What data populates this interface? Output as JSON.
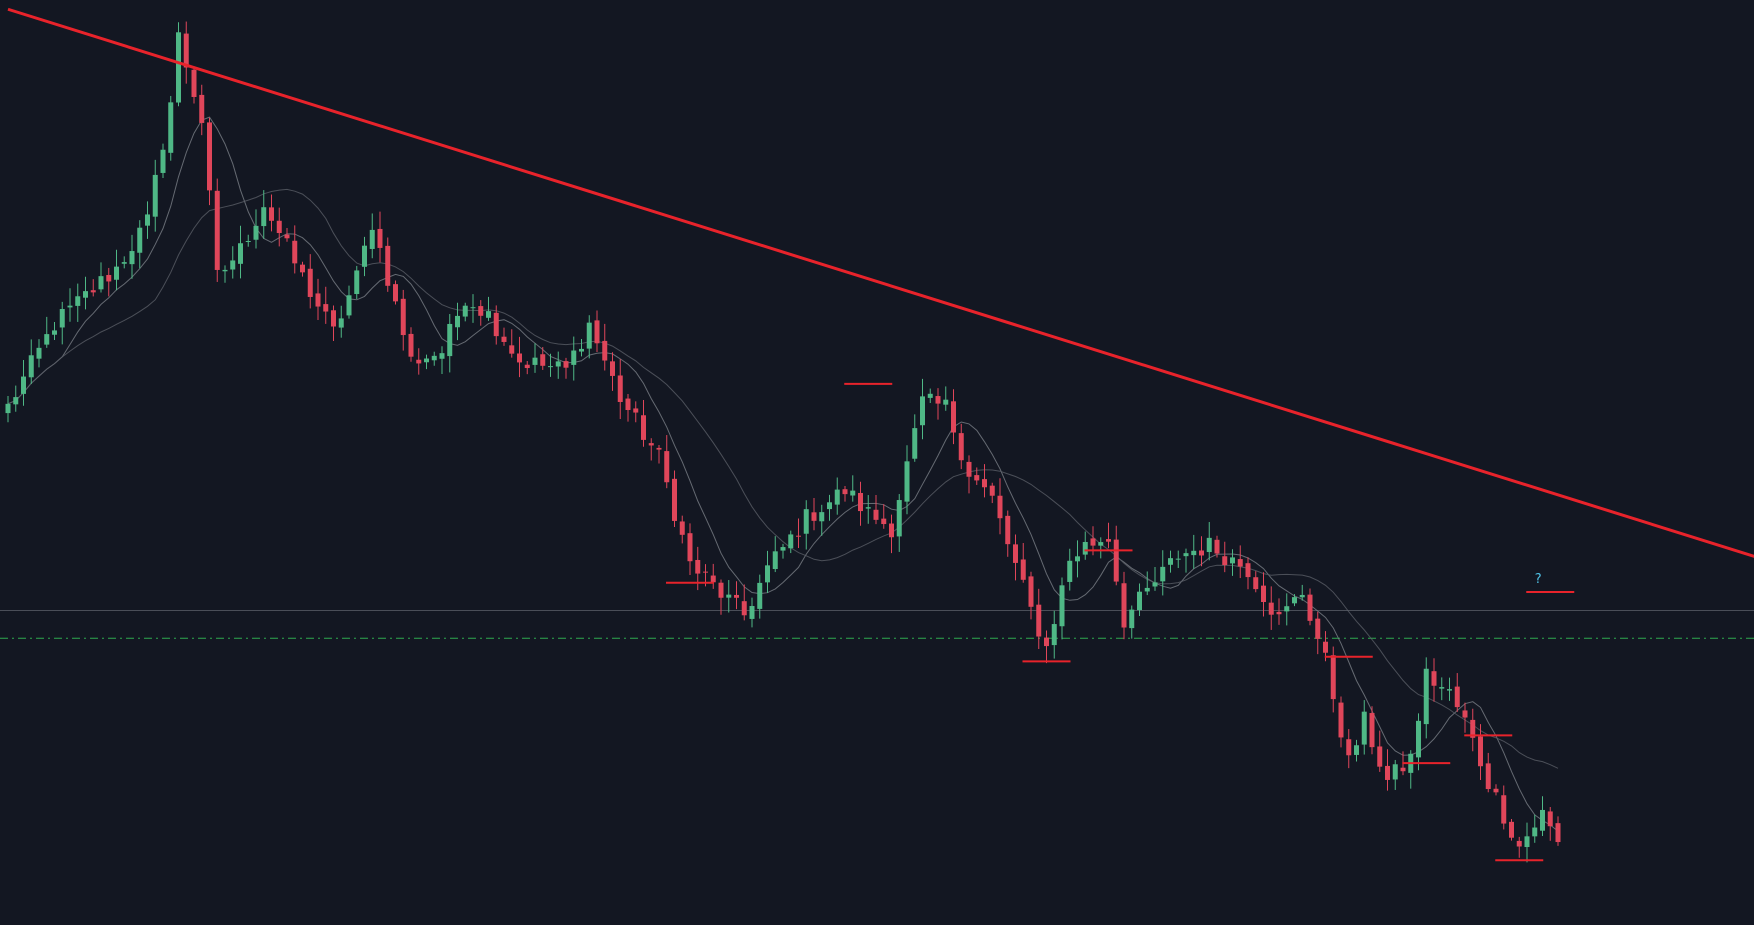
{
  "chart_data": {
    "type": "candlestick",
    "title": "",
    "xlabel": "",
    "ylabel": "",
    "grid": false,
    "ylim": [
      0,
      1000
    ],
    "colors": {
      "background": "#131722",
      "up": "#4fb886",
      "down": "#e0465a",
      "trendline": "#e8232b",
      "level_marker": "#e8232b",
      "moving_average_fast": "#7b7f87",
      "moving_average_slow": "#5a5e66",
      "horizontal_line": "#4a4e58",
      "dashed_line": "#2eaa4f",
      "question_mark": "#4fc3e8"
    },
    "anchors": [
      [
        0,
        560
      ],
      [
        6,
        650
      ],
      [
        14,
        710
      ],
      [
        18,
        760
      ],
      [
        21,
        890
      ],
      [
        22,
        960
      ],
      [
        25,
        870
      ],
      [
        27,
        700
      ],
      [
        30,
        730
      ],
      [
        33,
        780
      ],
      [
        38,
        700
      ],
      [
        42,
        640
      ],
      [
        45,
        700
      ],
      [
        47,
        760
      ],
      [
        52,
        610
      ],
      [
        56,
        620
      ],
      [
        59,
        680
      ],
      [
        62,
        660
      ],
      [
        66,
        610
      ],
      [
        72,
        600
      ],
      [
        75,
        650
      ],
      [
        79,
        570
      ],
      [
        84,
        505
      ],
      [
        88,
        390
      ],
      [
        95,
        335
      ],
      [
        98,
        385
      ],
      [
        103,
        440
      ],
      [
        108,
        470
      ],
      [
        111,
        445
      ],
      [
        114,
        430
      ],
      [
        117,
        530
      ],
      [
        118,
        565
      ],
      [
        121,
        560
      ],
      [
        124,
        490
      ],
      [
        127,
        460
      ],
      [
        132,
        340
      ],
      [
        134,
        300
      ],
      [
        137,
        395
      ],
      [
        139,
        410
      ],
      [
        142,
        420
      ],
      [
        144,
        330
      ],
      [
        147,
        360
      ],
      [
        151,
        400
      ],
      [
        155,
        410
      ],
      [
        160,
        385
      ],
      [
        164,
        330
      ],
      [
        167,
        360
      ],
      [
        170,
        285
      ],
      [
        173,
        175
      ],
      [
        175,
        220
      ],
      [
        178,
        155
      ],
      [
        181,
        180
      ],
      [
        183,
        270
      ],
      [
        186,
        250
      ],
      [
        188,
        220
      ],
      [
        191,
        155
      ],
      [
        195,
        85
      ],
      [
        198,
        120
      ],
      [
        200,
        88
      ]
    ],
    "trendline": {
      "x": [
        0,
        200
      ],
      "y": [
        990,
        465
      ],
      "extends_to_x": 228
    },
    "moving_averages": [
      {
        "period": 8
      },
      {
        "period": 20
      }
    ],
    "horizontal_level": 340,
    "dashed_level": 310,
    "swing_markers": [
      {
        "type": "low",
        "index": 88,
        "value": 370
      },
      {
        "type": "high",
        "index": 111,
        "value": 585
      },
      {
        "type": "low",
        "index": 134,
        "value": 285
      },
      {
        "type": "high",
        "index": 142,
        "value": 405
      },
      {
        "type": "high",
        "index": 173,
        "value": 290
      },
      {
        "type": "low",
        "index": 183,
        "value": 175
      },
      {
        "type": "high",
        "index": 191,
        "value": 205
      },
      {
        "type": "low",
        "index": 195,
        "value": 70
      },
      {
        "type": "high",
        "index": 199,
        "value": 360
      }
    ],
    "annotations": [
      {
        "text": "?",
        "index": 197,
        "value": 370
      }
    ]
  }
}
